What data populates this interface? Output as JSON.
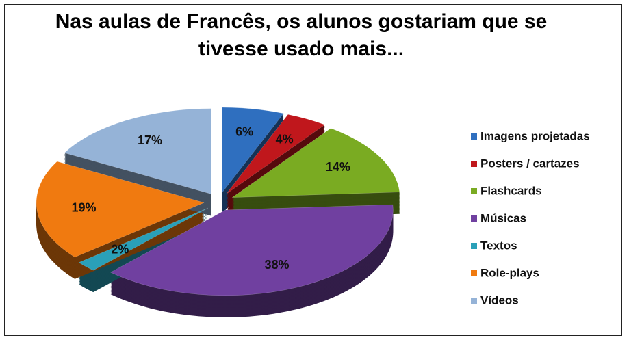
{
  "chart_data": {
    "type": "pie",
    "title": "Nas aulas de Francês, os alunos gostariam que se tivesse usado mais...",
    "categories": [
      "Imagens projetadas",
      "Posters / cartazes",
      "Flashcards",
      "Músicas",
      "Textos",
      "Role-plays",
      "Vídeos"
    ],
    "values": [
      6,
      4,
      14,
      38,
      2,
      19,
      17
    ],
    "value_labels": [
      "6%",
      "4%",
      "14%",
      "38%",
      "2%",
      "19%",
      "17%"
    ],
    "colors": [
      "#2f6fbf",
      "#c0171c",
      "#7aab22",
      "#7040a0",
      "#2aa0b8",
      "#f07a10",
      "#95b3d7"
    ],
    "legend": "right"
  }
}
